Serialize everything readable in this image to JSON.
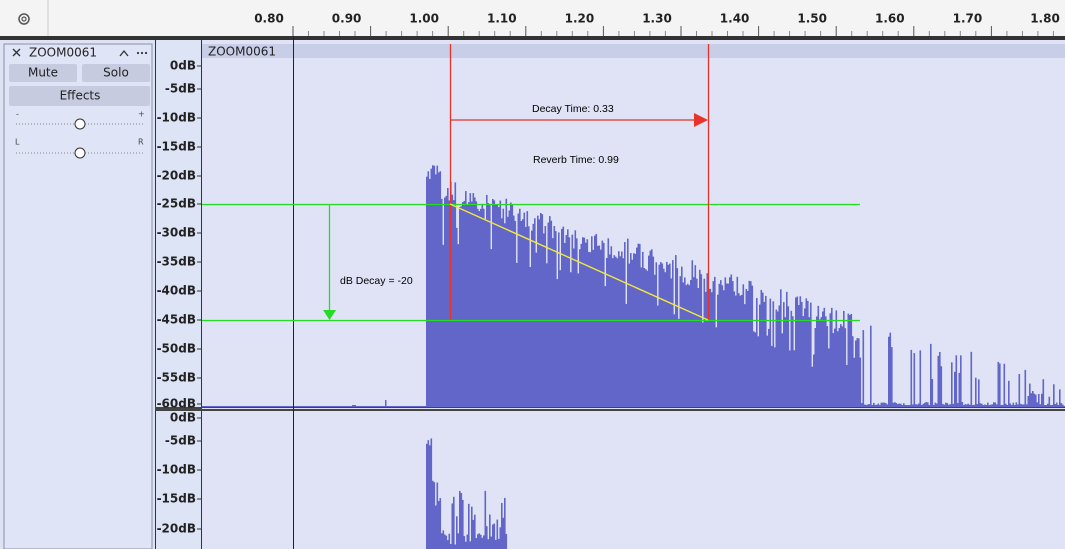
{
  "ruler": {
    "ticks": [
      "0.80",
      "0.90",
      "1.00",
      "1.10",
      "1.20",
      "1.30",
      "1.40",
      "1.50",
      "1.60",
      "1.70",
      "1.80"
    ]
  },
  "track_panel": {
    "name": "ZOOM0061",
    "buttons": {
      "mute": "Mute",
      "solo": "Solo",
      "effects": "Effects"
    },
    "gain": {
      "minus": "-",
      "plus": "+"
    },
    "pan": {
      "left": "L",
      "right": "R"
    }
  },
  "track": {
    "name": "ZOOM0061",
    "channel_1_scale": [
      "0dB",
      "-5dB",
      "-10dB",
      "-15dB",
      "-20dB",
      "-25dB",
      "-30dB",
      "-35dB",
      "-40dB",
      "-45dB",
      "-50dB",
      "-55dB",
      "-60dB"
    ],
    "channel_2_scale": [
      "0dB",
      "-5dB",
      "-10dB",
      "-15dB",
      "-20dB"
    ]
  },
  "annotations": {
    "decay_time": "Decay Time: 0.33",
    "reverb_time": "Reverb Time: 0.99",
    "db_decay": "dB Decay = -20"
  }
}
